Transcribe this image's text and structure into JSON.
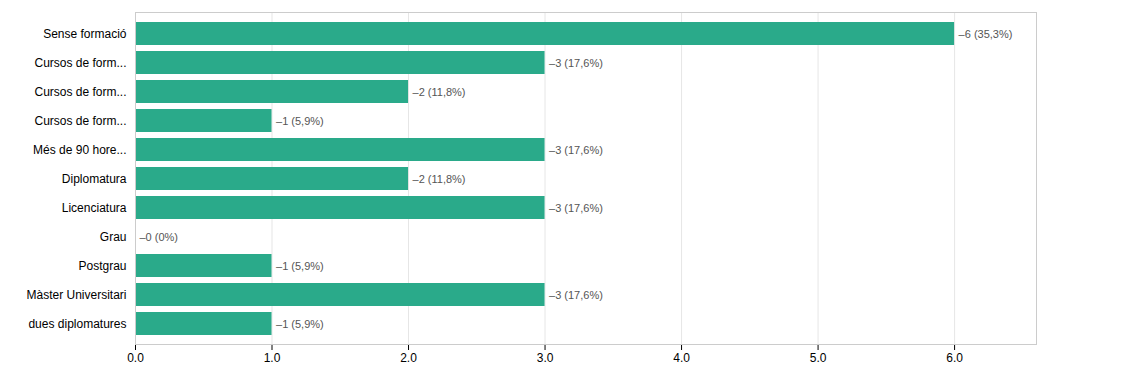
{
  "chart_data": {
    "type": "bar",
    "orientation": "horizontal",
    "categories": [
      "dues diplomatures",
      "Màster Universitari",
      "Postgrau",
      "Grau",
      "Licenciatura",
      "Diplomatura",
      "Més de 90 hore...",
      "Cursos de form...",
      "Cursos de form...",
      "Cursos de form...",
      "Sense formació"
    ],
    "values": [
      1,
      3,
      1,
      0,
      3,
      2,
      3,
      1,
      2,
      3,
      6
    ],
    "value_labels": [
      "–1 (5,9%)",
      "–3 (17,6%)",
      "–1 (5,9%)",
      "–0 (0%)",
      "–3 (17,6%)",
      "–2 (11,8%)",
      "–3 (17,6%)",
      "–1 (5,9%)",
      "–2 (11,8%)",
      "–3 (17,6%)",
      "–6 (35,3%)"
    ],
    "data_labels": true,
    "color": "#2aaa8a",
    "xlim": [
      0,
      6.6
    ],
    "xticks": [
      0,
      1,
      2,
      3,
      4,
      5,
      6
    ],
    "grid": true
  }
}
